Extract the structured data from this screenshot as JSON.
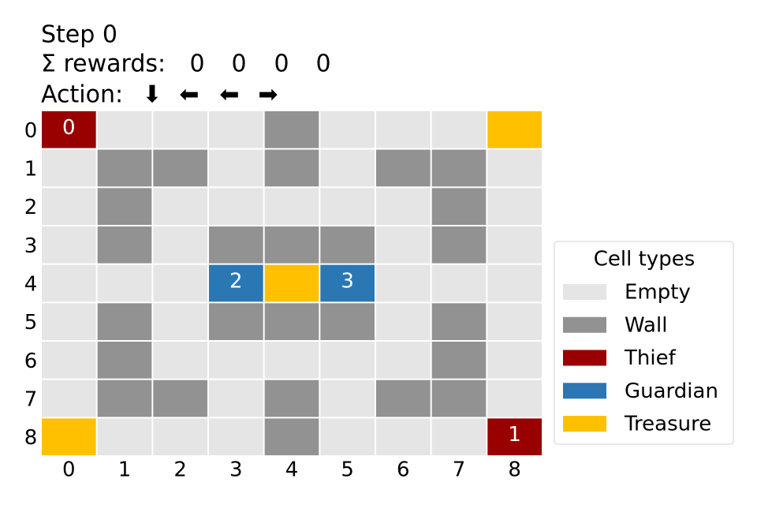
{
  "header": {
    "step": "Step 0",
    "rewards_label": "Σ rewards:",
    "rewards": [
      0,
      0,
      0,
      0
    ],
    "action_label": "Action:",
    "actions": [
      "⬇",
      "⬅",
      "⬅",
      "➡"
    ]
  },
  "grid": {
    "row_labels": [
      "0",
      "1",
      "2",
      "3",
      "4",
      "5",
      "6",
      "7",
      "8"
    ],
    "col_labels": [
      "0",
      "1",
      "2",
      "3",
      "4",
      "5",
      "6",
      "7",
      "8"
    ],
    "cells": [
      [
        "Thief",
        "Empty",
        "Empty",
        "Empty",
        "Wall",
        "Empty",
        "Empty",
        "Empty",
        "Treasure"
      ],
      [
        "Empty",
        "Wall",
        "Wall",
        "Empty",
        "Wall",
        "Empty",
        "Wall",
        "Wall",
        "Empty"
      ],
      [
        "Empty",
        "Wall",
        "Empty",
        "Empty",
        "Empty",
        "Empty",
        "Empty",
        "Wall",
        "Empty"
      ],
      [
        "Empty",
        "Wall",
        "Empty",
        "Wall",
        "Wall",
        "Wall",
        "Empty",
        "Wall",
        "Empty"
      ],
      [
        "Empty",
        "Empty",
        "Empty",
        "Guardian",
        "Treasure",
        "Guardian",
        "Empty",
        "Empty",
        "Empty"
      ],
      [
        "Empty",
        "Wall",
        "Empty",
        "Wall",
        "Wall",
        "Wall",
        "Empty",
        "Wall",
        "Empty"
      ],
      [
        "Empty",
        "Wall",
        "Empty",
        "Empty",
        "Empty",
        "Empty",
        "Empty",
        "Wall",
        "Empty"
      ],
      [
        "Empty",
        "Wall",
        "Wall",
        "Empty",
        "Wall",
        "Empty",
        "Wall",
        "Wall",
        "Empty"
      ],
      [
        "Treasure",
        "Empty",
        "Empty",
        "Empty",
        "Wall",
        "Empty",
        "Empty",
        "Empty",
        "Thief"
      ]
    ],
    "agents": [
      {
        "label": "0",
        "row": 0,
        "col": 0
      },
      {
        "label": "1",
        "row": 8,
        "col": 8
      },
      {
        "label": "2",
        "row": 4,
        "col": 3
      },
      {
        "label": "3",
        "row": 4,
        "col": 5
      }
    ]
  },
  "legend": {
    "title": "Cell types",
    "items": [
      {
        "name": "Empty",
        "color": "#e5e5e5"
      },
      {
        "name": "Wall",
        "color": "#929292"
      },
      {
        "name": "Thief",
        "color": "#990000"
      },
      {
        "name": "Guardian",
        "color": "#2a77b4"
      },
      {
        "name": "Treasure",
        "color": "#ffc000"
      }
    ]
  }
}
